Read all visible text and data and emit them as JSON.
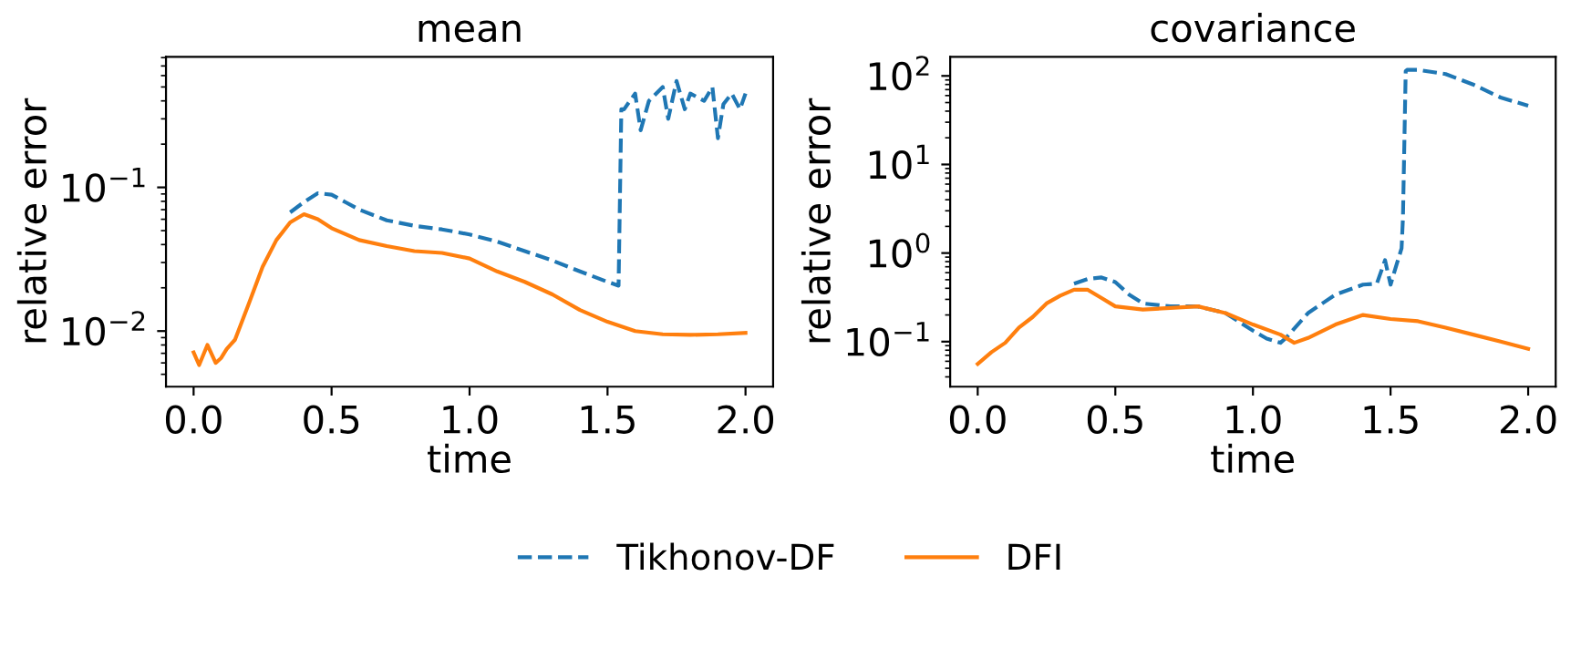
{
  "chart_data": [
    {
      "type": "line",
      "title": "mean",
      "xlabel": "time",
      "ylabel": "relative error",
      "log": "y",
      "legend": "bottom",
      "xlim": [
        -0.1,
        2.1
      ],
      "xticks": [
        {
          "value": 0,
          "label": "0.0"
        },
        {
          "value": 0.5,
          "label": "0.5"
        },
        {
          "value": 1,
          "label": "1.0"
        },
        {
          "value": 1.5,
          "label": "1.5"
        },
        {
          "value": 2,
          "label": "2.0"
        }
      ],
      "ylim": [
        0.0041,
        0.81
      ],
      "yticks": [
        {
          "value": 0.01,
          "label": "10$^{−2}$"
        },
        {
          "value": 0.1,
          "label": "10$^{−1}$"
        }
      ],
      "series": [
        {
          "name": "Tikhonov-DF",
          "color": "#1f77b4",
          "line_style": "dashed",
          "x": [
            0.35,
            0.4,
            0.45,
            0.5,
            0.55,
            0.6,
            0.7,
            0.8,
            0.9,
            1.0,
            1.1,
            1.2,
            1.3,
            1.4,
            1.5,
            1.54,
            1.55,
            1.56,
            1.6,
            1.62,
            1.65,
            1.7,
            1.72,
            1.75,
            1.78,
            1.8,
            1.85,
            1.88,
            1.9,
            1.92,
            1.95,
            1.98,
            2.0
          ],
          "values": [
            0.067,
            0.079,
            0.091,
            0.089,
            0.079,
            0.07,
            0.059,
            0.054,
            0.051,
            0.047,
            0.042,
            0.036,
            0.031,
            0.026,
            0.022,
            0.0207,
            0.35,
            0.35,
            0.45,
            0.25,
            0.4,
            0.5,
            0.3,
            0.55,
            0.35,
            0.45,
            0.4,
            0.5,
            0.22,
            0.38,
            0.45,
            0.35,
            0.45
          ]
        },
        {
          "name": "DFI",
          "color": "#ff7f0e",
          "line_style": "solid",
          "x": [
            0,
            0.02,
            0.05,
            0.08,
            0.1,
            0.12,
            0.15,
            0.2,
            0.25,
            0.3,
            0.35,
            0.4,
            0.45,
            0.5,
            0.6,
            0.7,
            0.8,
            0.9,
            1.0,
            1.1,
            1.2,
            1.3,
            1.4,
            1.5,
            1.6,
            1.7,
            1.8,
            1.9,
            2.0
          ],
          "values": [
            0.0071,
            0.0058,
            0.008,
            0.006,
            0.0065,
            0.0075,
            0.0087,
            0.0155,
            0.028,
            0.043,
            0.057,
            0.065,
            0.06,
            0.052,
            0.043,
            0.039,
            0.036,
            0.035,
            0.032,
            0.026,
            0.022,
            0.018,
            0.014,
            0.0116,
            0.01,
            0.0095,
            0.0094,
            0.0095,
            0.0097
          ]
        }
      ]
    },
    {
      "type": "line",
      "title": "covariance",
      "xlabel": "time",
      "ylabel": "relative error",
      "log": "y",
      "xlim": [
        -0.1,
        2.1
      ],
      "xticks": [
        {
          "value": 0,
          "label": "0.0"
        },
        {
          "value": 0.5,
          "label": "0.5"
        },
        {
          "value": 1,
          "label": "1.0"
        },
        {
          "value": 1.5,
          "label": "1.5"
        },
        {
          "value": 2,
          "label": "2.0"
        }
      ],
      "ylim": [
        0.031,
        164
      ],
      "yticks": [
        {
          "value": 0.1,
          "label": "10$^{−1}$"
        },
        {
          "value": 1,
          "label": "10$^{0}$"
        },
        {
          "value": 10,
          "label": "10$^{1}$"
        },
        {
          "value": 100,
          "label": "10$^{2}$"
        }
      ],
      "series": [
        {
          "name": "Tikhonov-DF",
          "color": "#1f77b4",
          "line_style": "dashed",
          "x": [
            0.35,
            0.4,
            0.45,
            0.5,
            0.55,
            0.6,
            0.7,
            0.8,
            0.9,
            1.0,
            1.05,
            1.1,
            1.12,
            1.2,
            1.3,
            1.4,
            1.45,
            1.48,
            1.5,
            1.52,
            1.54,
            1.545,
            1.555,
            1.56,
            1.6,
            1.7,
            1.8,
            1.9,
            2.0
          ],
          "values": [
            0.45,
            0.51,
            0.53,
            0.47,
            0.34,
            0.27,
            0.25,
            0.25,
            0.21,
            0.133,
            0.108,
            0.097,
            0.11,
            0.21,
            0.34,
            0.44,
            0.45,
            0.83,
            0.44,
            0.71,
            1.13,
            2.5,
            113,
            117,
            117,
            105,
            80,
            57,
            46
          ]
        },
        {
          "name": "DFI",
          "color": "#ff7f0e",
          "line_style": "solid",
          "x": [
            0,
            0.05,
            0.1,
            0.15,
            0.2,
            0.25,
            0.3,
            0.35,
            0.4,
            0.45,
            0.5,
            0.6,
            0.7,
            0.8,
            0.9,
            1.0,
            1.1,
            1.15,
            1.2,
            1.3,
            1.4,
            1.5,
            1.6,
            1.7,
            1.8,
            1.9,
            2.0
          ],
          "values": [
            0.056,
            0.076,
            0.097,
            0.144,
            0.19,
            0.27,
            0.33,
            0.385,
            0.385,
            0.31,
            0.25,
            0.23,
            0.24,
            0.25,
            0.21,
            0.156,
            0.12,
            0.097,
            0.11,
            0.156,
            0.2,
            0.18,
            0.17,
            0.144,
            0.12,
            0.1,
            0.083
          ]
        }
      ]
    }
  ]
}
